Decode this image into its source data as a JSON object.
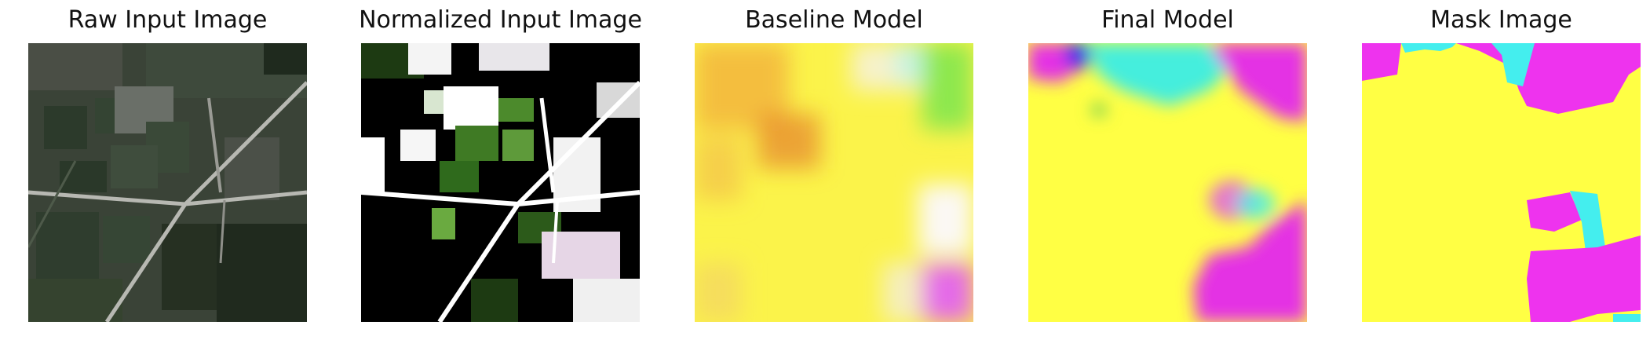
{
  "figure": {
    "panels": [
      {
        "title": "Raw Input Image"
      },
      {
        "title": "Normalized Input Image"
      },
      {
        "title": "Baseline Model"
      },
      {
        "title": "Final Model"
      },
      {
        "title": "Mask Image"
      }
    ],
    "colors": {
      "yellow": "#ffff44",
      "magenta": "#ee33ee",
      "cyan": "#44eeee",
      "green": "#77ee44",
      "blue": "#3333ee",
      "field_dark": "#2f3d2e"
    }
  }
}
